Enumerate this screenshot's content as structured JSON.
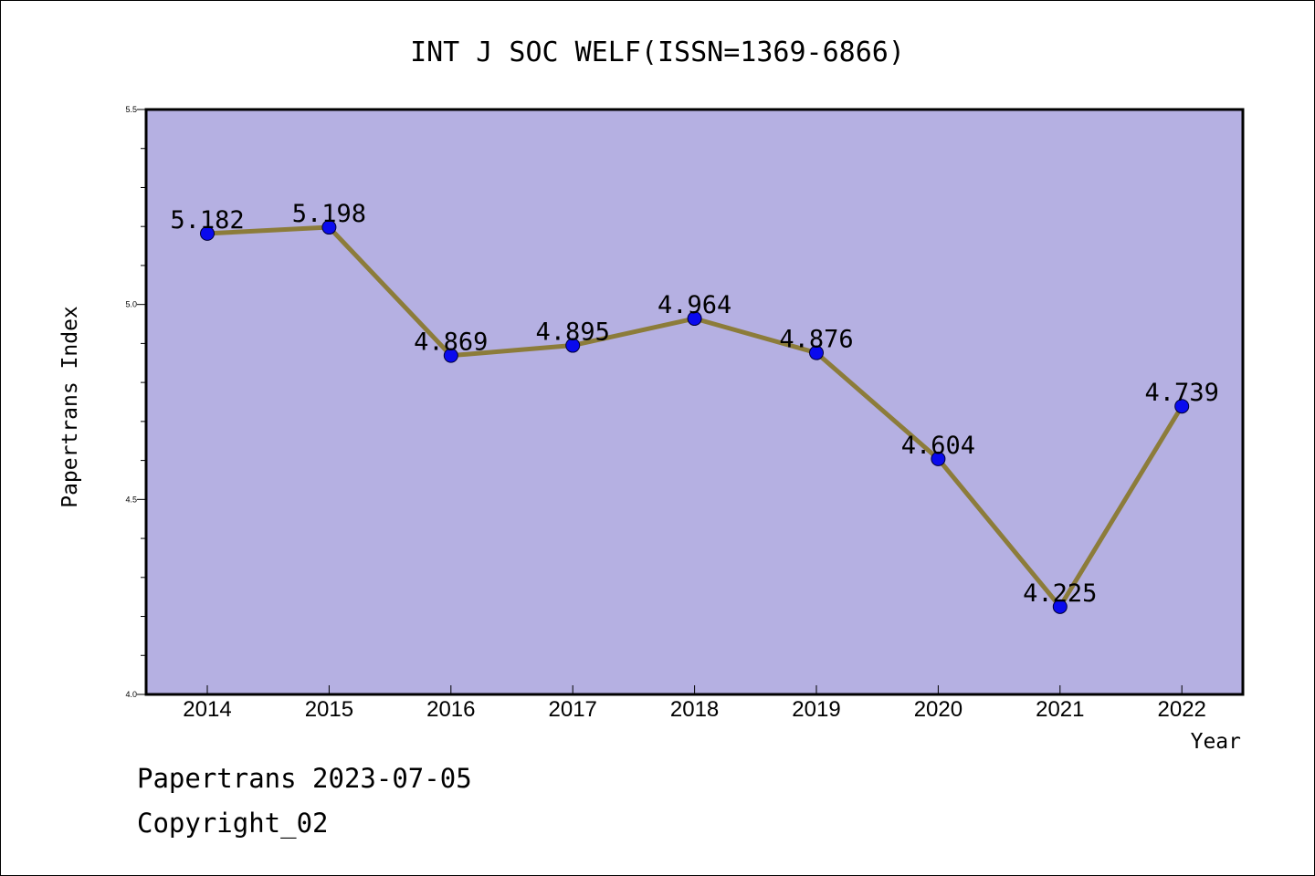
{
  "chart_data": {
    "type": "line",
    "title": "INT J SOC WELF(ISSN=1369-6866)",
    "xlabel": "Year",
    "ylabel": "Papertrans Index",
    "categories": [
      "2014",
      "2015",
      "2016",
      "2017",
      "2018",
      "2019",
      "2020",
      "2021",
      "2022"
    ],
    "series": [
      {
        "values": [
          5.182,
          5.198,
          4.869,
          4.895,
          4.964,
          4.876,
          4.604,
          4.225,
          4.739
        ]
      }
    ],
    "data_labels": [
      "5.182",
      "5.198",
      "4.869",
      "4.895",
      "4.964",
      "4.876",
      "4.604",
      "4.225",
      "4.739"
    ],
    "ylim": [
      4.0,
      5.5
    ],
    "yticks": [
      "4.0",
      "4.5",
      "5.0",
      "5.5"
    ],
    "grid": false,
    "legend": "none",
    "colors": {
      "plot_background": "#b5b0e2",
      "line": "#8c7c3a",
      "marker": "#0a0aee",
      "axis": "#000000"
    }
  },
  "footer": {
    "date_text": "Papertrans 2023-07-05",
    "copyright_text": "Copyright_02"
  }
}
